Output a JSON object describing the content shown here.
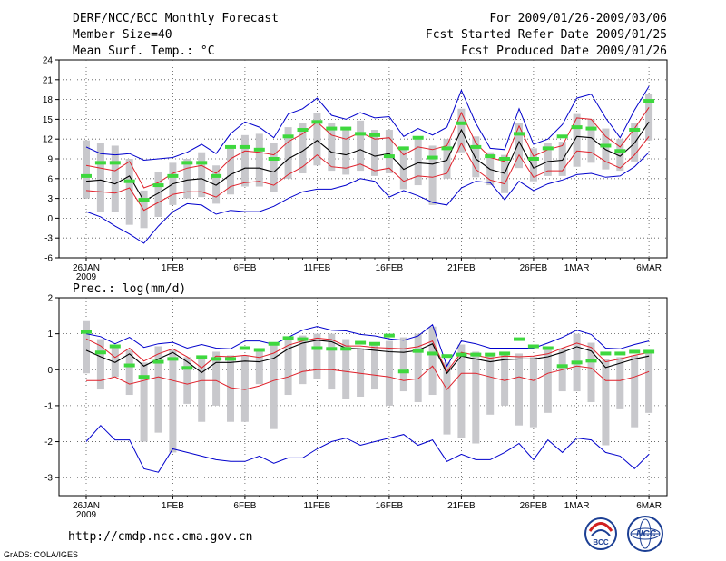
{
  "header": {
    "title": "DERF/NCC/BCC Monthly Forecast",
    "member_size": "Member Size=40",
    "variable": "Mean Surf. Temp.: °C",
    "period": "For 2009/01/26-2009/03/06",
    "fcst_started": "Fcst Started Refer Date 2009/01/25",
    "fcst_produced": "Fcst Produced Date 2009/01/26"
  },
  "footer": {
    "url": "http://cmdp.ncc.cma.gov.cn",
    "grads_credit": "GrADS: COLA/IGES",
    "logo_bcc": "BCC",
    "logo_ncc": "NCC"
  },
  "colors": {
    "mean": "#000000",
    "spread": "#e0202a",
    "extreme": "#0000cc",
    "box": "#c8c8cc",
    "observed": "#3ed83e"
  },
  "x_labels": [
    {
      "day": 0,
      "text": "26JAN"
    },
    {
      "day": 6,
      "text": "1FEB"
    },
    {
      "day": 11,
      "text": "6FEB"
    },
    {
      "day": 16,
      "text": "11FEB"
    },
    {
      "day": 21,
      "text": "16FEB"
    },
    {
      "day": 26,
      "text": "21FEB"
    },
    {
      "day": 31,
      "text": "26FEB"
    },
    {
      "day": 34,
      "text": "1MAR"
    },
    {
      "day": 39,
      "text": "6MAR"
    }
  ],
  "year_label": "2009",
  "chart_data": [
    {
      "type": "line",
      "title": "Mean Surf. Temp.: °C",
      "xlabel": "",
      "ylabel": "°C",
      "ylim": [
        -6,
        24
      ],
      "yticks": [
        -6,
        -3,
        0,
        3,
        6,
        9,
        12,
        15,
        18,
        21,
        24
      ],
      "x": [
        0,
        1,
        2,
        3,
        4,
        5,
        6,
        7,
        8,
        9,
        10,
        11,
        12,
        13,
        14,
        15,
        16,
        17,
        18,
        19,
        20,
        21,
        22,
        23,
        24,
        25,
        26,
        27,
        28,
        29,
        30,
        31,
        32,
        33,
        34,
        35,
        36,
        37,
        38,
        39
      ],
      "series": [
        {
          "name": "ensemble max",
          "values": [
            10.8,
            9.8,
            9.6,
            9.8,
            8.8,
            9.0,
            9.2,
            10.0,
            11.2,
            9.8,
            12.8,
            14.6,
            13.8,
            12.2,
            15.8,
            16.6,
            18.2,
            15.6,
            15.0,
            16.0,
            15.2,
            15.4,
            12.4,
            13.6,
            12.6,
            13.8,
            19.4,
            14.4,
            10.6,
            10.4,
            16.6,
            11.2,
            12.0,
            14.2,
            18.2,
            18.8,
            15.2,
            12.2,
            16.4,
            20.0
          ]
        },
        {
          "name": "ensemble upper",
          "values": [
            8.0,
            7.6,
            7.2,
            8.6,
            4.6,
            5.4,
            6.8,
            7.6,
            8.0,
            6.8,
            9.0,
            10.2,
            10.0,
            9.6,
            11.6,
            12.8,
            14.6,
            12.6,
            12.0,
            13.0,
            12.0,
            12.2,
            9.6,
            10.8,
            10.4,
            11.0,
            16.0,
            11.4,
            9.2,
            8.6,
            14.0,
            9.4,
            10.4,
            11.0,
            15.2,
            15.0,
            12.4,
            10.8,
            13.6,
            16.8
          ]
        },
        {
          "name": "ensemble mean",
          "values": [
            5.6,
            5.8,
            5.2,
            6.4,
            2.6,
            3.8,
            5.2,
            5.8,
            6.0,
            5.0,
            6.6,
            7.6,
            7.6,
            7.0,
            9.0,
            10.2,
            11.8,
            10.0,
            9.6,
            10.4,
            9.4,
            9.8,
            7.4,
            8.4,
            8.2,
            8.8,
            13.4,
            9.0,
            7.4,
            6.8,
            11.6,
            7.6,
            8.6,
            8.8,
            12.4,
            12.2,
            10.4,
            9.4,
            11.4,
            14.6
          ]
        },
        {
          "name": "ensemble lower",
          "values": [
            4.2,
            4.0,
            3.8,
            4.6,
            1.2,
            2.4,
            3.6,
            4.0,
            4.0,
            3.2,
            4.8,
            5.4,
            5.6,
            5.0,
            6.6,
            7.8,
            9.6,
            7.8,
            7.6,
            8.2,
            7.2,
            7.6,
            5.6,
            6.4,
            6.2,
            6.8,
            11.4,
            7.4,
            5.8,
            5.2,
            9.6,
            6.2,
            7.2,
            7.2,
            10.2,
            10.0,
            8.6,
            7.6,
            9.6,
            12.4
          ]
        },
        {
          "name": "ensemble min",
          "values": [
            1.0,
            0.2,
            -1.2,
            -2.4,
            -3.8,
            -1.2,
            1.0,
            2.2,
            2.0,
            0.6,
            1.2,
            1.0,
            1.0,
            1.8,
            3.0,
            4.0,
            4.4,
            4.4,
            5.0,
            6.0,
            5.6,
            3.2,
            4.2,
            3.4,
            2.4,
            2.0,
            4.6,
            5.6,
            5.4,
            2.8,
            5.6,
            4.2,
            5.2,
            5.8,
            6.6,
            6.8,
            6.2,
            6.4,
            7.8,
            10.0
          ]
        }
      ],
      "boxes": [
        {
          "low": 3.0,
          "high": 11.8
        },
        {
          "low": 1.0,
          "high": 11.4
        },
        {
          "low": 1.0,
          "high": 11.0
        },
        {
          "low": -1.0,
          "high": 9.0
        },
        {
          "low": -1.5,
          "high": 4.2
        },
        {
          "low": 0.2,
          "high": 7.0
        },
        {
          "low": 2.0,
          "high": 8.4
        },
        {
          "low": 3.0,
          "high": 9.0
        },
        {
          "low": 3.2,
          "high": 10.0
        },
        {
          "low": 2.2,
          "high": 8.0
        },
        {
          "low": 3.6,
          "high": 10.8
        },
        {
          "low": 4.8,
          "high": 12.6
        },
        {
          "low": 4.8,
          "high": 12.8
        },
        {
          "low": 4.0,
          "high": 11.4
        },
        {
          "low": 6.0,
          "high": 13.8
        },
        {
          "low": 6.8,
          "high": 14.4
        },
        {
          "low": 8.0,
          "high": 16.0
        },
        {
          "low": 7.2,
          "high": 14.4
        },
        {
          "low": 6.6,
          "high": 13.8
        },
        {
          "low": 7.2,
          "high": 14.8
        },
        {
          "low": 6.4,
          "high": 13.4
        },
        {
          "low": 6.8,
          "high": 13.4
        },
        {
          "low": 4.4,
          "high": 10.6
        },
        {
          "low": 5.0,
          "high": 12.0
        },
        {
          "low": 2.0,
          "high": 11.0
        },
        {
          "low": 6.0,
          "high": 12.0
        },
        {
          "low": 10.0,
          "high": 16.6
        },
        {
          "low": 6.2,
          "high": 12.4
        },
        {
          "low": 5.0,
          "high": 10.0
        },
        {
          "low": 3.8,
          "high": 9.6
        },
        {
          "low": 7.6,
          "high": 14.4
        },
        {
          "low": 5.6,
          "high": 10.6
        },
        {
          "low": 6.4,
          "high": 11.4
        },
        {
          "low": 6.4,
          "high": 11.6
        },
        {
          "low": 7.8,
          "high": 15.8
        },
        {
          "low": 8.4,
          "high": 15.0
        },
        {
          "low": 7.4,
          "high": 13.6
        },
        {
          "low": 7.2,
          "high": 12.0
        },
        {
          "low": 8.6,
          "high": 14.4
        },
        {
          "low": 11.8,
          "high": 18.8
        }
      ],
      "observed": [
        6.4,
        8.4,
        8.4,
        5.6,
        2.8,
        5.0,
        6.4,
        8.4,
        8.4,
        6.4,
        10.8,
        10.8,
        10.4,
        9.0,
        12.4,
        13.4,
        14.6,
        13.6,
        13.6,
        12.8,
        12.6,
        9.4,
        10.6,
        12.2,
        9.2,
        10.6,
        14.4,
        10.8,
        9.4,
        9.0,
        12.8,
        9.0,
        10.6,
        12.4,
        13.8,
        13.6,
        11.0,
        10.2,
        13.4,
        17.8
      ]
    },
    {
      "type": "line",
      "title": "Prec.: log(mm/d)",
      "xlabel": "",
      "ylabel": "log(mm/d)",
      "ylim": [
        -3.5,
        2
      ],
      "yticks": [
        -3,
        -2,
        -1,
        0,
        1,
        2
      ],
      "x": [
        0,
        1,
        2,
        3,
        4,
        5,
        6,
        7,
        8,
        9,
        10,
        11,
        12,
        13,
        14,
        15,
        16,
        17,
        18,
        19,
        20,
        21,
        22,
        23,
        24,
        25,
        26,
        27,
        28,
        29,
        30,
        31,
        32,
        33,
        34,
        35,
        36,
        37,
        38,
        39
      ],
      "series": [
        {
          "name": "ensemble max",
          "values": [
            1.0,
            0.92,
            0.72,
            0.9,
            0.62,
            0.72,
            0.76,
            0.6,
            0.7,
            0.6,
            0.58,
            0.8,
            0.8,
            0.7,
            0.9,
            1.1,
            1.2,
            1.1,
            1.08,
            0.98,
            0.94,
            0.86,
            0.82,
            0.94,
            1.25,
            0.1,
            0.8,
            0.72,
            0.6,
            0.6,
            0.6,
            0.6,
            0.74,
            0.9,
            1.1,
            0.98,
            0.6,
            0.58,
            0.7,
            0.8
          ]
        },
        {
          "name": "ensemble upper",
          "values": [
            0.86,
            0.66,
            0.34,
            0.6,
            0.24,
            0.44,
            0.58,
            0.36,
            0.05,
            0.38,
            0.36,
            0.4,
            0.34,
            0.46,
            0.68,
            0.8,
            0.88,
            0.84,
            0.66,
            0.66,
            0.62,
            0.6,
            0.58,
            0.64,
            0.8,
            -0.05,
            0.48,
            0.4,
            0.32,
            0.38,
            0.36,
            0.38,
            0.44,
            0.6,
            0.74,
            0.62,
            0.22,
            0.3,
            0.4,
            0.48
          ]
        },
        {
          "name": "ensemble mean",
          "values": [
            0.54,
            0.36,
            0.2,
            0.44,
            0.1,
            0.3,
            0.48,
            0.22,
            -0.08,
            0.2,
            0.2,
            0.24,
            0.22,
            0.32,
            0.58,
            0.74,
            0.82,
            0.78,
            0.6,
            0.58,
            0.54,
            0.5,
            0.48,
            0.54,
            0.72,
            -0.1,
            0.38,
            0.3,
            0.22,
            0.28,
            0.3,
            0.3,
            0.36,
            0.48,
            0.64,
            0.52,
            0.06,
            0.18,
            0.3,
            0.38
          ]
        },
        {
          "name": "ensemble lower",
          "values": [
            -0.3,
            -0.3,
            -0.2,
            -0.4,
            -0.3,
            -0.2,
            -0.3,
            -0.4,
            -0.3,
            -0.3,
            -0.5,
            -0.55,
            -0.45,
            -0.3,
            -0.2,
            -0.05,
            0.0,
            0.0,
            -0.05,
            -0.1,
            -0.15,
            -0.2,
            -0.3,
            -0.25,
            0.1,
            -0.55,
            -0.1,
            -0.1,
            -0.2,
            -0.3,
            -0.2,
            -0.3,
            -0.1,
            0.0,
            0.1,
            0.05,
            -0.3,
            -0.3,
            -0.2,
            -0.05
          ]
        },
        {
          "name": "ensemble min",
          "values": [
            -2.0,
            -1.55,
            -1.95,
            -1.95,
            -2.75,
            -2.85,
            -2.2,
            -2.3,
            -2.4,
            -2.5,
            -2.55,
            -2.55,
            -2.4,
            -2.6,
            -2.45,
            -2.45,
            -2.2,
            -2.0,
            -1.9,
            -2.1,
            -2.0,
            -1.9,
            -1.8,
            -2.1,
            -1.95,
            -2.55,
            -2.35,
            -2.5,
            -2.5,
            -2.3,
            -2.05,
            -2.5,
            -1.95,
            -2.3,
            -1.9,
            -1.95,
            -2.3,
            -2.4,
            -2.75,
            -2.35
          ]
        }
      ],
      "boxes": [
        {
          "low": -0.1,
          "high": 1.35
        },
        {
          "low": -0.55,
          "high": 0.85
        },
        {
          "low": -0.2,
          "high": 0.6
        },
        {
          "low": -0.7,
          "high": 0.55
        },
        {
          "low": -2.0,
          "high": 0.2
        },
        {
          "low": -1.75,
          "high": 0.65
        },
        {
          "low": -2.3,
          "high": 0.55
        },
        {
          "low": -0.95,
          "high": 0.35
        },
        {
          "low": -1.45,
          "high": 0.3
        },
        {
          "low": -1.0,
          "high": 0.5
        },
        {
          "low": -1.45,
          "high": 0.4
        },
        {
          "low": -1.45,
          "high": 0.4
        },
        {
          "low": -0.4,
          "high": 0.6
        },
        {
          "low": -1.65,
          "high": 0.7
        },
        {
          "low": -0.7,
          "high": 0.85
        },
        {
          "low": -0.4,
          "high": 0.95
        },
        {
          "low": -0.25,
          "high": 1.0
        },
        {
          "low": -0.55,
          "high": 1.0
        },
        {
          "low": -0.8,
          "high": 0.85
        },
        {
          "low": -0.75,
          "high": 0.6
        },
        {
          "low": -0.55,
          "high": 0.75
        },
        {
          "low": -1.0,
          "high": 0.8
        },
        {
          "low": -0.6,
          "high": 0.9
        },
        {
          "low": -0.9,
          "high": 1.0
        },
        {
          "low": -0.7,
          "high": 1.2
        },
        {
          "low": -1.8,
          "high": 0.2
        },
        {
          "low": -1.9,
          "high": 0.7
        },
        {
          "low": -2.05,
          "high": 0.5
        },
        {
          "low": -1.25,
          "high": 0.4
        },
        {
          "low": -1.0,
          "high": 0.45
        },
        {
          "low": -1.55,
          "high": 0.45
        },
        {
          "low": -1.6,
          "high": 0.35
        },
        {
          "low": -1.2,
          "high": 0.55
        },
        {
          "low": -0.6,
          "high": 0.6
        },
        {
          "low": -0.6,
          "high": 1.0
        },
        {
          "low": -0.9,
          "high": 0.75
        },
        {
          "low": -2.1,
          "high": 0.3
        },
        {
          "low": -1.1,
          "high": 0.35
        },
        {
          "low": -1.6,
          "high": 0.4
        },
        {
          "low": -1.2,
          "high": 0.55
        }
      ],
      "observed": [
        1.05,
        0.48,
        0.65,
        0.12,
        -0.2,
        0.22,
        0.3,
        0.05,
        0.35,
        0.3,
        0.3,
        0.6,
        0.55,
        0.72,
        0.88,
        0.85,
        0.6,
        0.58,
        0.58,
        0.75,
        0.72,
        0.95,
        -0.05,
        0.52,
        0.45,
        0.38,
        0.42,
        0.42,
        0.42,
        0.45,
        0.85,
        0.65,
        0.6,
        0.1,
        0.2,
        0.25,
        0.45,
        0.45,
        0.5,
        0.5
      ]
    }
  ]
}
